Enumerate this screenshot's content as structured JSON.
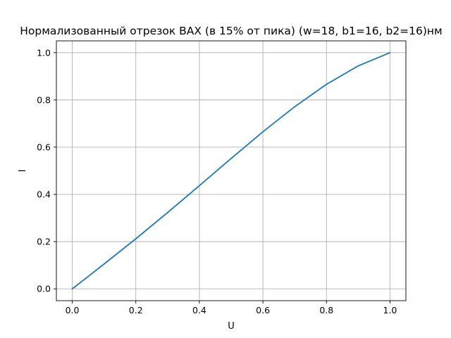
{
  "chart_data": {
    "type": "line",
    "title": "Нормализованный отрезок ВАХ (в 15% от пика) (w=18, b1=16, b2=16)нм",
    "xlabel": "U",
    "ylabel": "I",
    "xlim": [
      -0.05,
      1.05
    ],
    "ylim": [
      -0.05,
      1.05
    ],
    "xticks": [
      0.0,
      0.2,
      0.4,
      0.6,
      0.8,
      1.0
    ],
    "yticks": [
      0.0,
      0.2,
      0.4,
      0.6,
      0.8,
      1.0
    ],
    "xtick_labels": [
      "0.0",
      "0.2",
      "0.4",
      "0.6",
      "0.8",
      "1.0"
    ],
    "ytick_labels": [
      "0.0",
      "0.2",
      "0.4",
      "0.6",
      "0.8",
      "1.0"
    ],
    "grid": true,
    "series": [
      {
        "color": "#1f77b4",
        "x": [
          0.0,
          0.1,
          0.2,
          0.3,
          0.4,
          0.5,
          0.6,
          0.7,
          0.8,
          0.9,
          1.0
        ],
        "y": [
          0.0,
          0.105,
          0.212,
          0.323,
          0.437,
          0.552,
          0.665,
          0.771,
          0.866,
          0.944,
          1.0
        ]
      }
    ]
  }
}
